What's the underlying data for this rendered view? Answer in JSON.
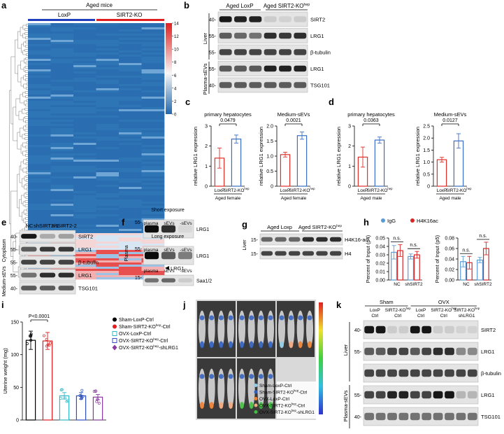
{
  "panels": {
    "a": {
      "label": "a",
      "title": "Aged mice",
      "groups": [
        "LoxP",
        "SIRT2-KO"
      ],
      "group_colors": [
        "#1f3fbf",
        "#e02020"
      ],
      "colorbar_ticks": [
        0,
        2,
        4,
        6,
        8,
        10,
        12,
        14
      ],
      "annotation": "LRG1"
    },
    "b": {
      "label": "b",
      "lanes": [
        "Aged LoxP",
        {
          "text": "Aged SIRT2-KO",
          "sup": "hep"
        }
      ],
      "rows": [
        "SIRT2",
        "LRG1",
        "β-tubulin",
        "LRG1",
        "TSG101"
      ],
      "mw": [
        "40-",
        "55-",
        "55-",
        "55-",
        "40-"
      ],
      "tissues": [
        "Liver",
        "Plasma-sEVs"
      ]
    },
    "c": {
      "label": "c",
      "charts": [
        {
          "title": "primary hepatocytes",
          "ylabel": "relative LRG1 expression",
          "categories": [
            "LoxP",
            {
              "text": "SIRT2-KO",
              "sup": "hep"
            }
          ],
          "xlabel": "Aged female",
          "values": [
            1.4,
            2.35
          ],
          "errors": [
            0.5,
            0.2
          ],
          "colors": [
            "#e0302a",
            "#3a6fc4"
          ],
          "ylim": [
            0,
            3
          ],
          "yticks": [
            0,
            1,
            2,
            3
          ],
          "pvalue": "0.0479"
        },
        {
          "title": "Medium-sEVs",
          "ylabel": "relative LRG1 expression",
          "categories": [
            "LoxP",
            {
              "text": "SIRT2-KO",
              "sup": "hep"
            }
          ],
          "xlabel": "Aged female",
          "values": [
            1.05,
            1.68
          ],
          "errors": [
            0.08,
            0.12
          ],
          "colors": [
            "#e0302a",
            "#3a6fc4"
          ],
          "ylim": [
            0,
            2
          ],
          "yticks": [
            0,
            0.5,
            {
              "value": 1,
              "label": "1.0"
            },
            1.5,
            {
              "value": 2,
              "label": "2.0"
            }
          ],
          "pvalue": "0.0021"
        }
      ]
    },
    "d": {
      "label": "d",
      "charts": [
        {
          "title": "primary hepatocytes",
          "ylabel": "relative LRG1 expression",
          "categories": [
            "LoxP",
            {
              "text": "SIRT2-KO",
              "sup": "hep"
            }
          ],
          "xlabel": "Aged male",
          "values": [
            1.45,
            2.3
          ],
          "errors": [
            0.5,
            0.15
          ],
          "colors": [
            "#e0302a",
            "#3a6fc4"
          ],
          "ylim": [
            0,
            3
          ],
          "yticks": [
            0,
            1,
            2,
            3
          ],
          "pvalue": "0.0363"
        },
        {
          "title": "Medium-sEVs",
          "ylabel": "relative LRG1 expression",
          "categories": [
            "LoxP",
            {
              "text": "SIRT2-KO",
              "sup": "hep"
            }
          ],
          "xlabel": "Aged male",
          "values": [
            1.1,
            1.88
          ],
          "errors": [
            0.1,
            0.3
          ],
          "colors": [
            "#e0302a",
            "#3a6fc4"
          ],
          "ylim": [
            0,
            2.5
          ],
          "yticks": [
            0,
            0.5,
            {
              "value": 1,
              "label": "1.0"
            },
            1.5,
            {
              "value": 2,
              "label": "2.0"
            },
            2.5
          ],
          "pvalue": "0.0127"
        }
      ]
    },
    "e": {
      "label": "e",
      "lanes": [
        "NC",
        "shSIRT2-1",
        "shSIRT2-2"
      ],
      "rows": [
        "SIRT2",
        "LRG1",
        "β-tubulin",
        "LRG1",
        "TSG101"
      ],
      "mw": [
        "40-",
        "55-",
        "55-",
        "55-",
        "40-"
      ],
      "tissues": [
        "Cytoplasm",
        "Medium-sEVs"
      ]
    },
    "f": {
      "label": "f",
      "tissue": "Plasma",
      "blots": [
        {
          "header": "Short exposure",
          "lanes": [
            "plasma",
            "sEVs",
            "-sEVs"
          ],
          "protein": "LRG1",
          "mw": "55-"
        },
        {
          "header": "Long  exposure",
          "lanes": [
            "plasma",
            "sEVs",
            "-sEVs"
          ],
          "protein": "LRG1",
          "mw": "55-"
        },
        {
          "lanes": [
            "plasma",
            "sEVs",
            "-sEVs"
          ],
          "protein": "Saa1/2",
          "mw": "15-"
        }
      ]
    },
    "g": {
      "label": "g",
      "lanes": [
        "Aged Loxp",
        {
          "text": "Aged SIRT2-KO",
          "sup": "hep"
        }
      ],
      "rows": [
        "H4K16-ac",
        "H4"
      ],
      "mw": [
        "15-",
        "15-"
      ],
      "tissue": "Liver"
    },
    "h": {
      "label": "h",
      "legend": [
        {
          "name": "IgG",
          "color": "#5b9bd5"
        },
        {
          "name": "H4K16ac",
          "color": "#d62728"
        }
      ],
      "charts": [
        {
          "ylabel": "Percent of Input (p4)",
          "categories": [
            "NC",
            "shSIRT2"
          ],
          "series": [
            {
              "values": [
                0.033,
                0.028
              ],
              "errors": [
                0.008,
                0.003
              ]
            },
            {
              "values": [
                0.035,
                0.03
              ],
              "errors": [
                0.007,
                0.004
              ]
            }
          ],
          "annotations": [
            "n.s.",
            "n.s."
          ],
          "ylim": [
            0,
            0.05
          ],
          "yticks": [
            {
              "value": 0,
              "label": "0.00"
            },
            0.01,
            0.02,
            0.03,
            0.04,
            0.05
          ]
        },
        {
          "ylabel": "Percent of Input (p5)",
          "categories": [
            "NC",
            "shSIRT2"
          ],
          "series": [
            {
              "values": [
                0.035,
                0.038
              ],
              "errors": [
                0.01,
                0.005
              ]
            },
            {
              "values": [
                0.033,
                0.06
              ],
              "errors": [
                0.012,
                0.012
              ]
            }
          ],
          "annotations": [
            "n.s.",
            "n.s."
          ],
          "ylim": [
            0,
            0.08
          ],
          "yticks": [
            {
              "value": 0,
              "label": "0.00"
            },
            0.02,
            0.04,
            0.06,
            0.08
          ]
        }
      ]
    },
    "i": {
      "label": "i",
      "chart": {
        "ylabel": "Uterine weight (mg)",
        "values": [
          122,
          121,
          37,
          37,
          35
        ],
        "errors": [
          14,
          13,
          5,
          5,
          4
        ],
        "ylim": [
          0,
          150
        ],
        "yticks": [
          0,
          50,
          100,
          150
        ],
        "pvalue": "P<0.0001"
      },
      "legend": [
        {
          "name": "Sham-LoxP-Ctrl",
          "color": "#000000",
          "marker": "circle"
        },
        {
          "name": {
            "text": "Sham-SIRT2-KO",
            "sup": "hep",
            "tail": "-Ctrl"
          },
          "color": "#e02020",
          "marker": "circle"
        },
        {
          "name": "OVX-LoxP-Ctrl",
          "color": "#30b8c8",
          "marker": "square-open"
        },
        {
          "name": {
            "text": "OVX-SIRT2-KO",
            "sup": "hep",
            "tail": "-Ctrl"
          },
          "color": "#3050c0",
          "marker": "square-open"
        },
        {
          "name": {
            "text": "OVX-SIRT2-KO",
            "sup": "hep",
            "tail": "-shLRG1"
          },
          "color": "#8a3aa0",
          "marker": "diamond"
        }
      ]
    },
    "j": {
      "label": "j",
      "legend": [
        {
          "name": "Sham-LoxP-Ctrl",
          "color": "#8fcde8"
        },
        {
          "name": {
            "text": "Sham-SIRT2-KO",
            "sup": "hep",
            "tail": "-Ctrl"
          },
          "color": "#2f5fc0"
        },
        {
          "name": "OVX-LoxP-Ctrl",
          "color": "#f08030"
        },
        {
          "name": {
            "text": "OVX-SIRT2-KO",
            "sup": "hep",
            "tail": "-Ctrl"
          },
          "color": "#f2a880"
        },
        {
          "name": {
            "text": "OVX-SIRT2-KO",
            "sup": "hep",
            "tail": "-shLRG1"
          },
          "color": "#40c040"
        }
      ]
    },
    "k": {
      "label": "k",
      "groups": [
        "Sham",
        "OVX"
      ],
      "lanes": [
        [
          "LoxP",
          "Ctrl"
        ],
        [
          {
            "text": "SIRT2-KO",
            "sup": "hep"
          },
          "Ctrl"
        ],
        [
          "LoxP",
          "Ctrl"
        ],
        [
          {
            "text": "SIRT2-KO",
            "sup": "hep"
          },
          "Ctrl"
        ],
        [
          {
            "text": "SIRT2-KO",
            "sup": "hep"
          },
          "shLRG1"
        ]
      ],
      "rows": [
        "SIRT2",
        "LRG1",
        "β-tubulin",
        "LRG1",
        "TSG101"
      ],
      "mw": [
        "40-",
        "55-",
        null,
        "55-",
        "40-"
      ],
      "tissues": [
        "Liver",
        "Plasma-sEVs"
      ]
    }
  }
}
